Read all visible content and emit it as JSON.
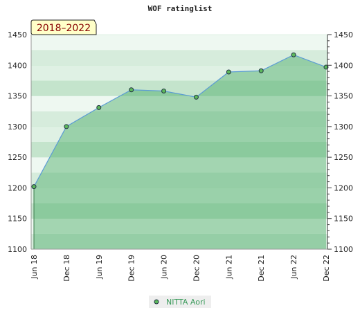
{
  "chart_data": {
    "type": "line",
    "title": "WOF ratinglist",
    "badge": "2018–2022",
    "categories": [
      "Jun 18",
      "Dec 18",
      "Jun 19",
      "Dec 19",
      "Jun 20",
      "Dec 20",
      "Jun 21",
      "Dec 21",
      "Jun 22",
      "Dec 22"
    ],
    "series": [
      {
        "name": "NITTA Aori",
        "color": "#5cb85c",
        "values": [
          1202,
          1300,
          1331,
          1360,
          1358,
          1348,
          1389,
          1391,
          1417,
          1397
        ]
      }
    ],
    "ylim": [
      1100,
      1450
    ],
    "yticks": [
      1100,
      1150,
      1200,
      1250,
      1300,
      1350,
      1400,
      1450
    ],
    "grid": true,
    "legend": "bottom"
  }
}
